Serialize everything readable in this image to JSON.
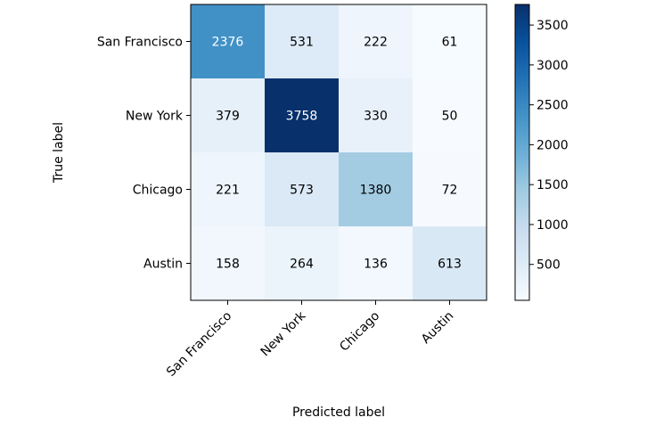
{
  "chart_data": {
    "type": "heatmap",
    "title": "",
    "xlabel": "Predicted label",
    "ylabel": "True label",
    "x_categories": [
      "San Francisco",
      "New York",
      "Chicago",
      "Austin"
    ],
    "y_categories": [
      "San Francisco",
      "New York",
      "Chicago",
      "Austin"
    ],
    "values": [
      [
        2376,
        531,
        222,
        61
      ],
      [
        379,
        3758,
        330,
        50
      ],
      [
        221,
        573,
        1380,
        72
      ],
      [
        158,
        264,
        136,
        613
      ]
    ],
    "colormap": "Blues",
    "value_range": [
      50,
      3758
    ],
    "colorbar": {
      "ticks": [
        500,
        1000,
        1500,
        2000,
        2500,
        3000,
        3500
      ]
    },
    "text_color_light": "#ffffff",
    "text_color_dark": "#000000"
  }
}
